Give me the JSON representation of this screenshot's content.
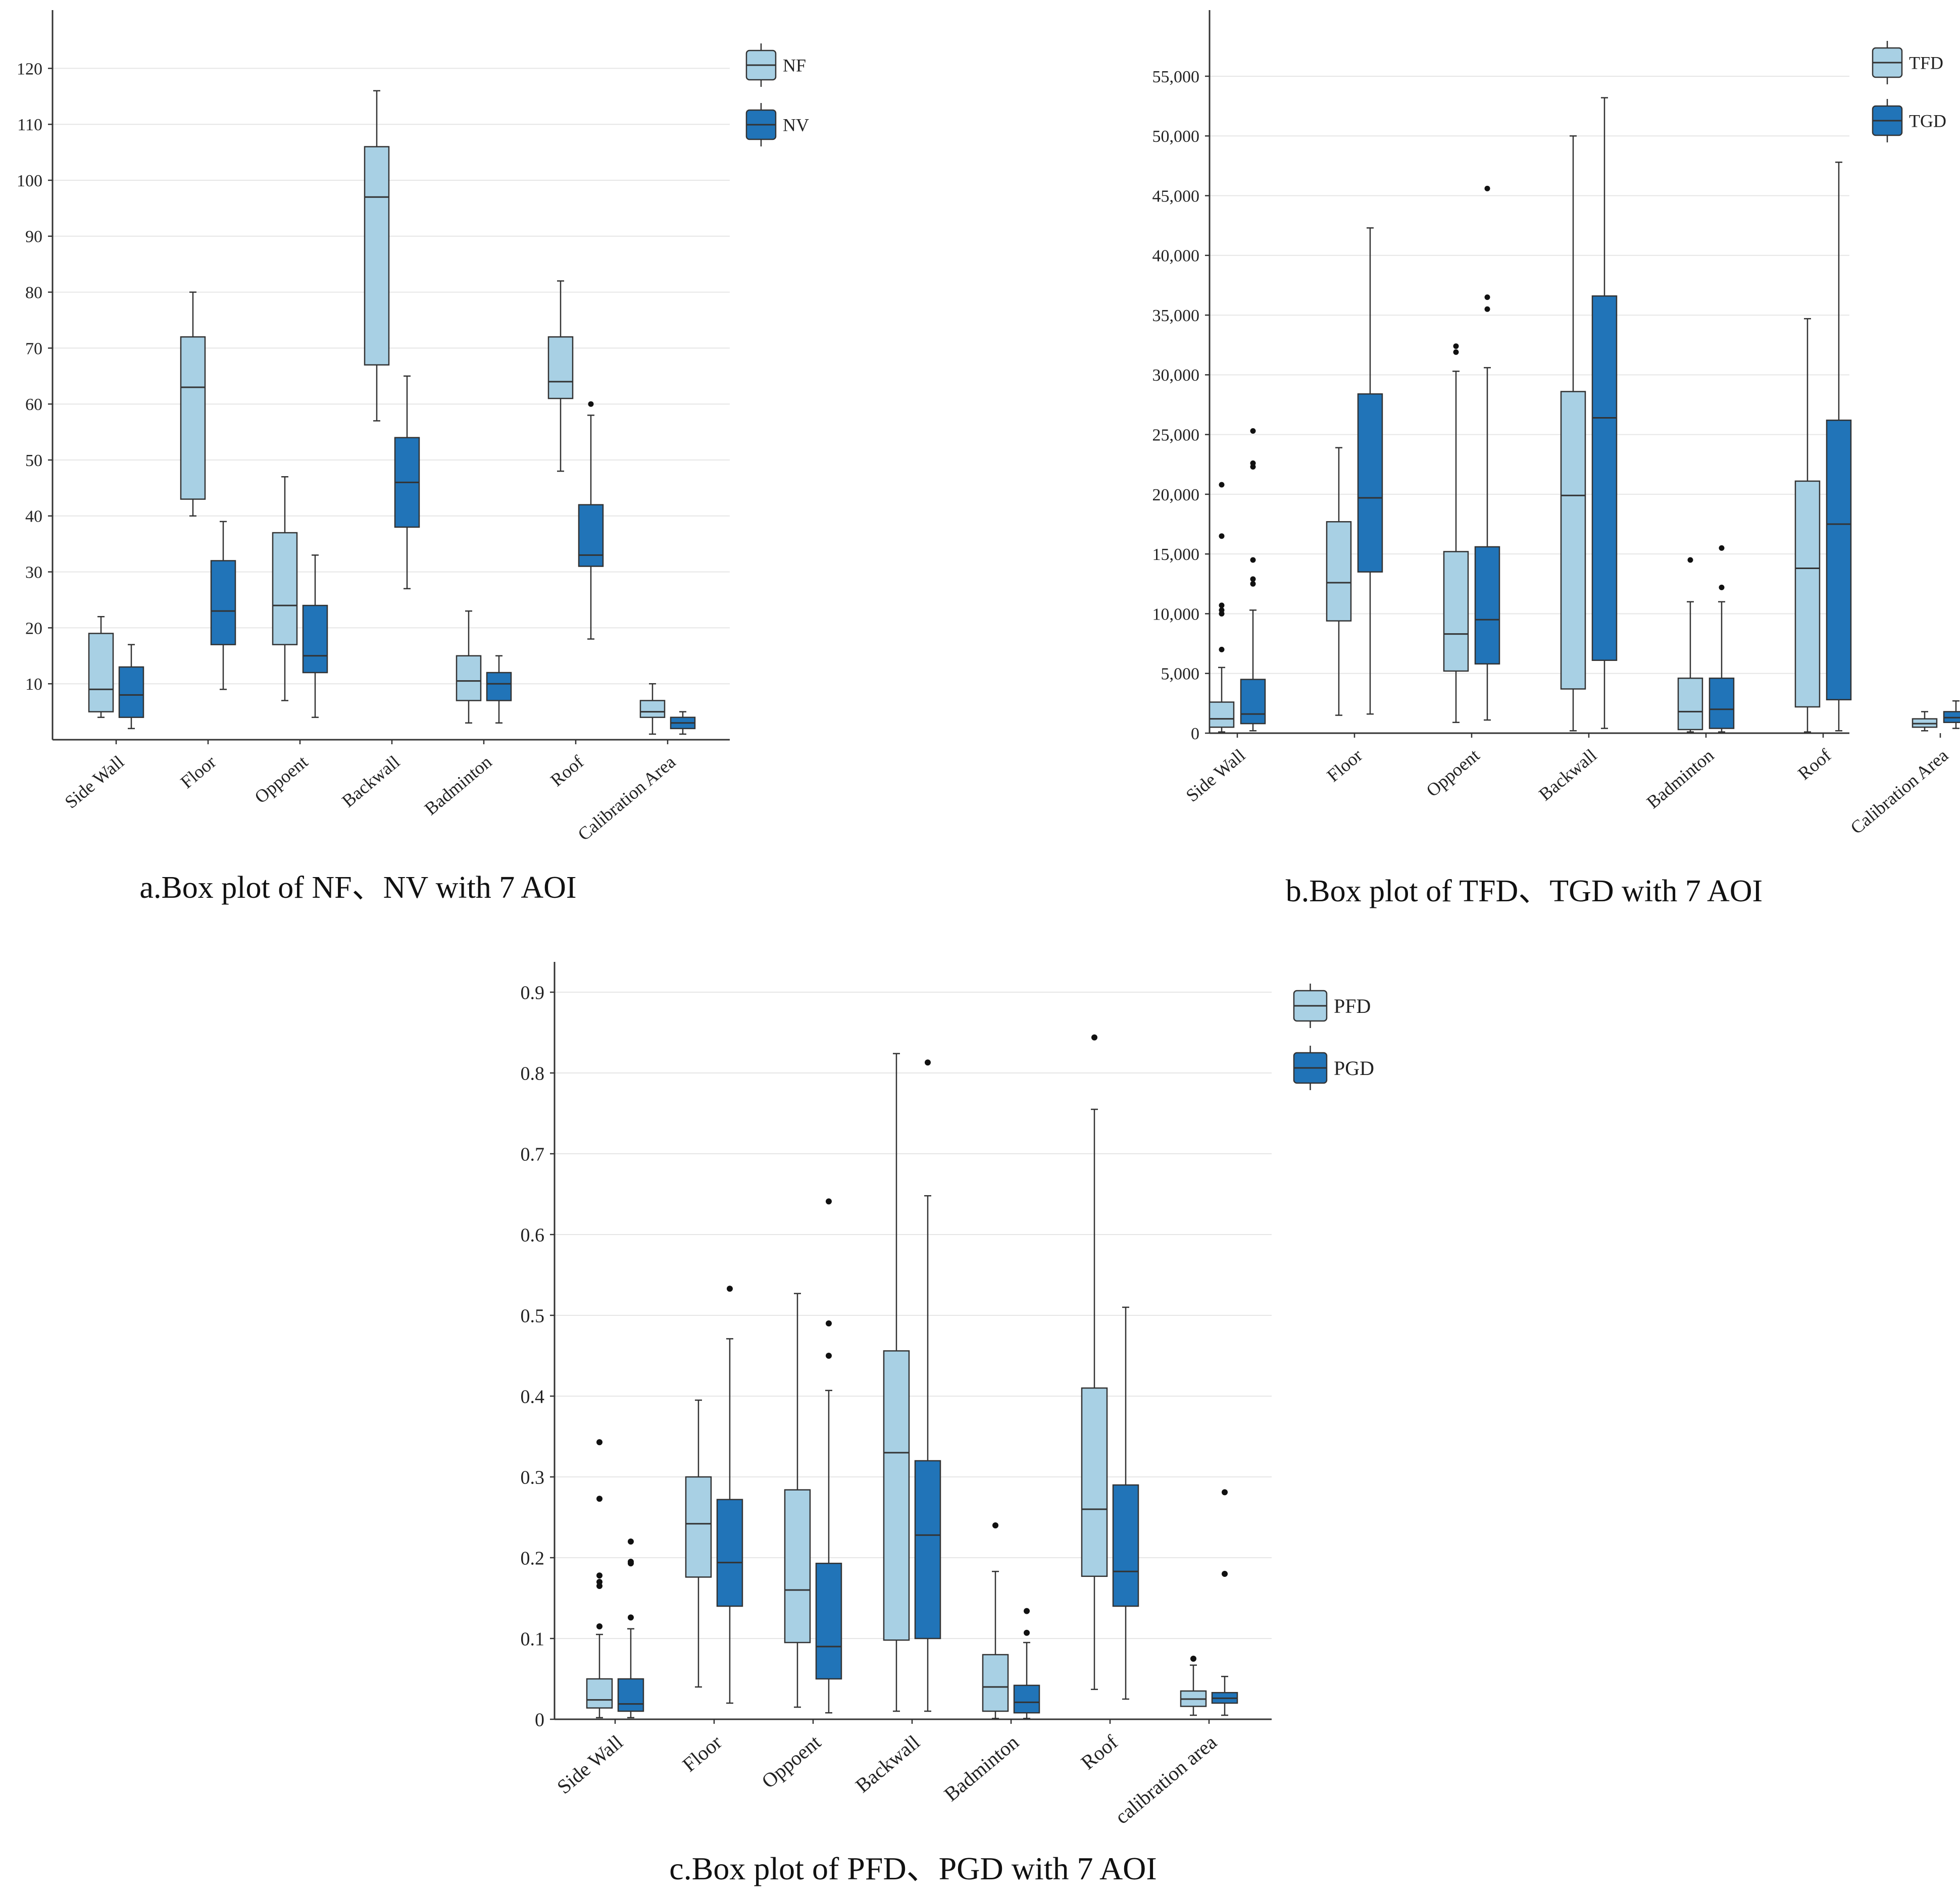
{
  "colors": {
    "light": "#a8d0e4",
    "dark": "#2174b8",
    "stroke": "#333333",
    "grid": "#e6e6e6"
  },
  "chart_data": [
    {
      "id": "a",
      "type": "boxplot",
      "caption": "a.Box plot of NF、NV with 7 AOI",
      "categories": [
        "Side Wall",
        "Floor",
        "Oppoent",
        "Backwall",
        "Badminton",
        "Roof",
        "Calibration Area"
      ],
      "ylim": [
        0,
        125
      ],
      "yticks": [
        10,
        20,
        30,
        40,
        50,
        60,
        70,
        80,
        90,
        100,
        110,
        120
      ],
      "ytick_labels": [
        "10",
        "20",
        "30",
        "40",
        "50",
        "60",
        "70",
        "80",
        "90",
        "100",
        "110",
        "120"
      ],
      "series": [
        {
          "name": "NF",
          "color": "light",
          "boxes": [
            {
              "min": 4,
              "q1": 5,
              "median": 9,
              "q3": 19,
              "max": 22,
              "outliers": []
            },
            {
              "min": 40,
              "q1": 43,
              "median": 63,
              "q3": 72,
              "max": 80,
              "outliers": []
            },
            {
              "min": 7,
              "q1": 17,
              "median": 24,
              "q3": 37,
              "max": 47,
              "outliers": []
            },
            {
              "min": 57,
              "q1": 67,
              "median": 97,
              "q3": 106,
              "max": 116,
              "outliers": []
            },
            {
              "min": 3,
              "q1": 7,
              "median": 10.5,
              "q3": 15,
              "max": 23,
              "outliers": []
            },
            {
              "min": 48,
              "q1": 61,
              "median": 64,
              "q3": 72,
              "max": 82,
              "outliers": []
            },
            {
              "min": 1,
              "q1": 4,
              "median": 5,
              "q3": 7,
              "max": 10,
              "outliers": []
            }
          ]
        },
        {
          "name": "NV",
          "color": "dark",
          "boxes": [
            {
              "min": 2,
              "q1": 4,
              "median": 8,
              "q3": 13,
              "max": 17,
              "outliers": []
            },
            {
              "min": 9,
              "q1": 17,
              "median": 23,
              "q3": 32,
              "max": 39,
              "outliers": []
            },
            {
              "min": 4,
              "q1": 12,
              "median": 15,
              "q3": 24,
              "max": 33,
              "outliers": []
            },
            {
              "min": 27,
              "q1": 38,
              "median": 46,
              "q3": 54,
              "max": 65,
              "outliers": []
            },
            {
              "min": 3,
              "q1": 7,
              "median": 10,
              "q3": 12,
              "max": 15,
              "outliers": []
            },
            {
              "min": 18,
              "q1": 31,
              "median": 33,
              "q3": 42,
              "max": 58,
              "outliers": [
                60
              ]
            },
            {
              "min": 1,
              "q1": 2,
              "median": 3,
              "q3": 4,
              "max": 5,
              "outliers": []
            }
          ]
        }
      ]
    },
    {
      "id": "b",
      "type": "boxplot",
      "caption": "b.Box plot of TFD、TGD with 7 AOI",
      "categories": [
        "Side Wall",
        "Floor",
        "Oppoent",
        "Backwall",
        "Badminton",
        "Roof",
        "Calibration Area"
      ],
      "ylim": [
        0,
        58000
      ],
      "yticks": [
        0,
        5000,
        10000,
        15000,
        20000,
        25000,
        30000,
        35000,
        40000,
        45000,
        50000,
        55000
      ],
      "ytick_labels": [
        "0",
        "5,000",
        "10,000",
        "15,000",
        "20,000",
        "25,000",
        "30,000",
        "35,000",
        "40,000",
        "45,000",
        "50,000",
        "55,000"
      ],
      "series": [
        {
          "name": "TFD",
          "color": "light",
          "boxes": [
            {
              "min": 100,
              "q1": 500,
              "median": 1200,
              "q3": 2600,
              "max": 5500,
              "outliers": [
                7000,
                10000,
                10300,
                10700,
                16500,
                20800
              ]
            },
            {
              "min": 1500,
              "q1": 9400,
              "median": 12600,
              "q3": 17700,
              "max": 23900,
              "outliers": []
            },
            {
              "min": 900,
              "q1": 5200,
              "median": 8300,
              "q3": 15200,
              "max": 30300,
              "outliers": [
                31900,
                32400
              ]
            },
            {
              "min": 200,
              "q1": 3700,
              "median": 19900,
              "q3": 28600,
              "max": 50000,
              "outliers": []
            },
            {
              "min": 100,
              "q1": 300,
              "median": 1800,
              "q3": 4600,
              "max": 11000,
              "outliers": [
                14500
              ]
            },
            {
              "min": 100,
              "q1": 2200,
              "median": 13800,
              "q3": 21100,
              "max": 34700,
              "outliers": []
            },
            {
              "min": 200,
              "q1": 500,
              "median": 800,
              "q3": 1200,
              "max": 1800,
              "outliers": []
            }
          ]
        },
        {
          "name": "TGD",
          "color": "dark",
          "boxes": [
            {
              "min": 200,
              "q1": 800,
              "median": 1600,
              "q3": 4500,
              "max": 10300,
              "outliers": [
                12500,
                12900,
                14500,
                22300,
                22600,
                25300
              ]
            },
            {
              "min": 1600,
              "q1": 13500,
              "median": 19700,
              "q3": 28400,
              "max": 42300,
              "outliers": []
            },
            {
              "min": 1100,
              "q1": 5800,
              "median": 9500,
              "q3": 15600,
              "max": 30600,
              "outliers": [
                35500,
                36500,
                45600
              ]
            },
            {
              "min": 400,
              "q1": 6100,
              "median": 26400,
              "q3": 36600,
              "max": 53200,
              "outliers": []
            },
            {
              "min": 100,
              "q1": 400,
              "median": 2000,
              "q3": 4600,
              "max": 11000,
              "outliers": [
                12200,
                15500
              ]
            },
            {
              "min": 200,
              "q1": 2800,
              "median": 17500,
              "q3": 26200,
              "max": 47800,
              "outliers": []
            },
            {
              "min": 400,
              "q1": 900,
              "median": 1300,
              "q3": 1800,
              "max": 2700,
              "outliers": []
            }
          ]
        }
      ]
    },
    {
      "id": "c",
      "type": "boxplot",
      "caption": "c.Box plot of PFD、PGD with 7 AOI",
      "categories": [
        "Side Wall",
        "Floor",
        "Oppoent",
        "Backwall",
        "Badminton",
        "Roof",
        "calibration area"
      ],
      "ylim": [
        0,
        0.9
      ],
      "yticks": [
        0,
        0.1,
        0.2,
        0.3,
        0.4,
        0.5,
        0.6,
        0.7,
        0.8,
        0.9
      ],
      "ytick_labels": [
        "0",
        "0.1",
        "0.2",
        "0.3",
        "0.4",
        "0.5",
        "0.6",
        "0.7",
        "0.8",
        "0.9"
      ],
      "series": [
        {
          "name": "PFD",
          "color": "light",
          "boxes": [
            {
              "min": 0.002,
              "q1": 0.014,
              "median": 0.024,
              "q3": 0.05,
              "max": 0.105,
              "outliers": [
                0.115,
                0.165,
                0.17,
                0.178,
                0.273,
                0.343
              ]
            },
            {
              "min": 0.04,
              "q1": 0.176,
              "median": 0.242,
              "q3": 0.3,
              "max": 0.395,
              "outliers": []
            },
            {
              "min": 0.015,
              "q1": 0.095,
              "median": 0.16,
              "q3": 0.284,
              "max": 0.527,
              "outliers": []
            },
            {
              "min": 0.01,
              "q1": 0.098,
              "median": 0.33,
              "q3": 0.456,
              "max": 0.824,
              "outliers": []
            },
            {
              "min": 0.001,
              "q1": 0.01,
              "median": 0.04,
              "q3": 0.08,
              "max": 0.183,
              "outliers": [
                0.24
              ]
            },
            {
              "min": 0.037,
              "q1": 0.177,
              "median": 0.26,
              "q3": 0.41,
              "max": 0.755,
              "outliers": [
                0.844
              ]
            },
            {
              "min": 0.005,
              "q1": 0.016,
              "median": 0.025,
              "q3": 0.035,
              "max": 0.067,
              "outliers": [
                0.075
              ]
            }
          ]
        },
        {
          "name": "PGD",
          "color": "dark",
          "boxes": [
            {
              "min": 0.002,
              "q1": 0.01,
              "median": 0.019,
              "q3": 0.05,
              "max": 0.112,
              "outliers": [
                0.126,
                0.193,
                0.195,
                0.22
              ]
            },
            {
              "min": 0.02,
              "q1": 0.14,
              "median": 0.194,
              "q3": 0.272,
              "max": 0.471,
              "outliers": [
                0.533
              ]
            },
            {
              "min": 0.008,
              "q1": 0.05,
              "median": 0.09,
              "q3": 0.193,
              "max": 0.407,
              "outliers": [
                0.45,
                0.49,
                0.641
              ]
            },
            {
              "min": 0.01,
              "q1": 0.1,
              "median": 0.228,
              "q3": 0.32,
              "max": 0.648,
              "outliers": [
                0.813
              ]
            },
            {
              "min": 0.001,
              "q1": 0.008,
              "median": 0.021,
              "q3": 0.042,
              "max": 0.095,
              "outliers": [
                0.107,
                0.134
              ]
            },
            {
              "min": 0.025,
              "q1": 0.14,
              "median": 0.183,
              "q3": 0.29,
              "max": 0.51,
              "outliers": []
            },
            {
              "min": 0.005,
              "q1": 0.02,
              "median": 0.026,
              "q3": 0.033,
              "max": 0.053,
              "outliers": [
                0.18,
                0.281
              ]
            }
          ]
        }
      ]
    }
  ]
}
